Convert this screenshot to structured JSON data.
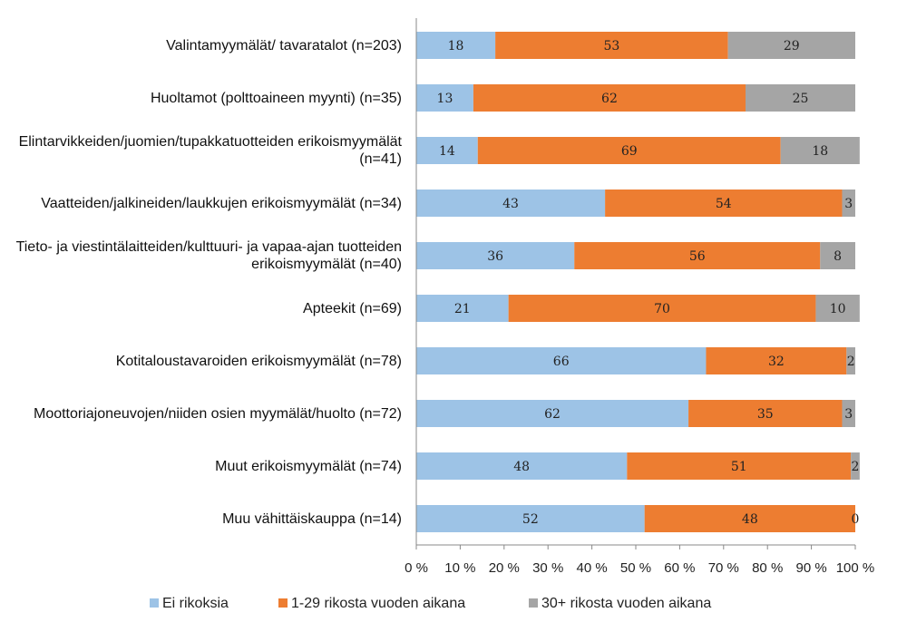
{
  "chart_data": {
    "type": "stacked-bar-horizontal",
    "categories": [
      "Valintamyymälät/ tavaratalot (n=203)",
      "Huoltamot (polttoaineen myynti) (n=35)",
      "Elintarvikkeiden/juomien/tupakkatuotteiden erikoismyymälät (n=41)",
      "Vaatteiden/jalkineiden/laukkujen erikoismyymälät (n=34)",
      "Tieto- ja viestintälaitteiden/kulttuuri- ja vapaa-ajan tuotteiden erikoismyymälät (n=40)",
      "Apteekit (n=69)",
      "Kotitaloustavaroiden erikoismyymälät (n=78)",
      "Moottoriajoneuvojen/niiden osien myymälät/huolto (n=72)",
      "Muut erikoismyymälät (n=74)",
      "Muu vähittäiskauppa (n=14)"
    ],
    "series": [
      {
        "name": "Ei rikoksia",
        "color": "#9dc3e6",
        "values": [
          18,
          13,
          14,
          43,
          36,
          21,
          66,
          62,
          48,
          52
        ]
      },
      {
        "name": "1-29 rikosta vuoden aikana",
        "color": "#ed7d31",
        "values": [
          53,
          62,
          69,
          54,
          56,
          70,
          32,
          35,
          51,
          48
        ]
      },
      {
        "name": "30+ rikosta vuoden aikana",
        "color": "#a5a5a5",
        "values": [
          29,
          25,
          18,
          3,
          8,
          10,
          2,
          3,
          2,
          0
        ]
      }
    ],
    "xlim": [
      0,
      100
    ],
    "xticks": [
      {
        "value": 0,
        "label": "0 %"
      },
      {
        "value": 10,
        "label": "10 %"
      },
      {
        "value": 20,
        "label": "20 %"
      },
      {
        "value": 30,
        "label": "30 %"
      },
      {
        "value": 40,
        "label": "40 %"
      },
      {
        "value": 50,
        "label": "50 %"
      },
      {
        "value": 60,
        "label": "60 %"
      },
      {
        "value": 70,
        "label": "70 %"
      },
      {
        "value": 80,
        "label": "80 %"
      },
      {
        "value": 90,
        "label": "90 %"
      },
      {
        "value": 100,
        "label": "100 %"
      }
    ],
    "legend": "bottom"
  }
}
